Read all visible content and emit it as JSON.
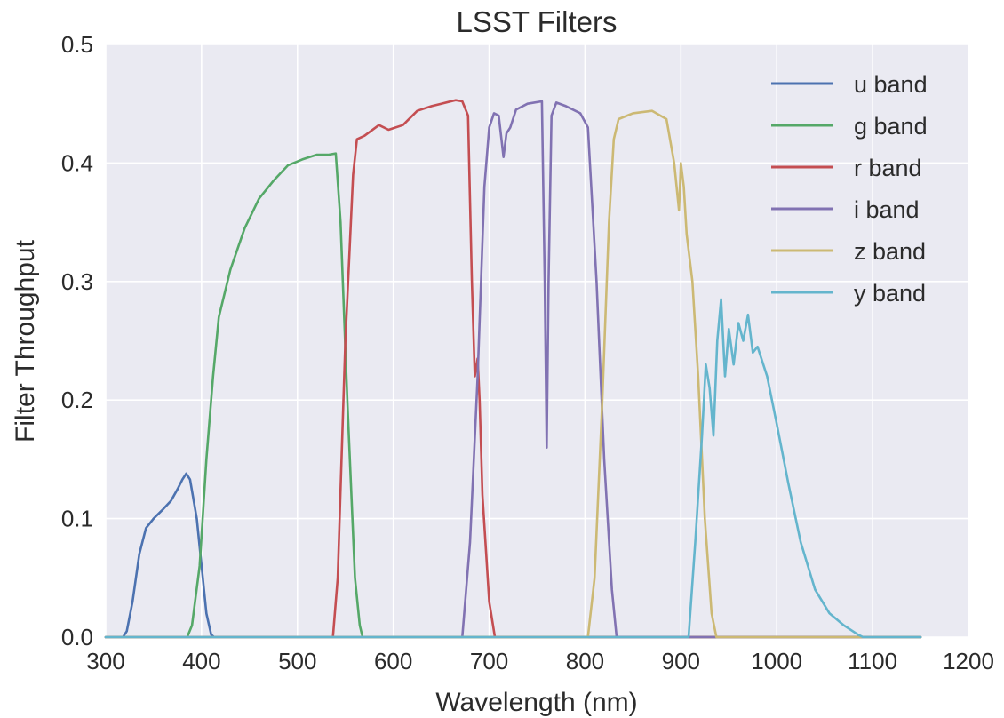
{
  "chart_data": {
    "type": "line",
    "title": "LSST Filters",
    "xlabel": "Wavelength (nm)",
    "ylabel": "Filter Throughput",
    "xlim": [
      300,
      1200
    ],
    "ylim": [
      0,
      0.5
    ],
    "xticks": [
      "300",
      "400",
      "500",
      "600",
      "700",
      "800",
      "900",
      "1000",
      "1100",
      "1200"
    ],
    "yticks": [
      "0.0",
      "0.1",
      "0.2",
      "0.3",
      "0.4",
      "0.5"
    ],
    "grid": true,
    "background": "#eaeaf2",
    "legend_position": "top-right",
    "series": [
      {
        "name": "u band",
        "color": "#4c72b0",
        "x": [
          300,
          318,
          322,
          328,
          335,
          342,
          350,
          360,
          368,
          375,
          380,
          384,
          388,
          395,
          400,
          405,
          410,
          413,
          1150
        ],
        "y": [
          0,
          0,
          0.005,
          0.03,
          0.07,
          0.092,
          0.1,
          0.108,
          0.115,
          0.125,
          0.133,
          0.138,
          0.133,
          0.1,
          0.06,
          0.02,
          0.002,
          0,
          0
        ]
      },
      {
        "name": "g band",
        "color": "#55a868",
        "x": [
          300,
          385,
          390,
          398,
          405,
          412,
          418,
          430,
          445,
          460,
          475,
          490,
          505,
          520,
          532,
          540,
          545,
          552,
          560,
          565,
          568,
          1150
        ],
        "y": [
          0,
          0,
          0.01,
          0.06,
          0.15,
          0.22,
          0.27,
          0.31,
          0.345,
          0.37,
          0.385,
          0.398,
          0.403,
          0.407,
          0.407,
          0.408,
          0.35,
          0.2,
          0.05,
          0.01,
          0,
          0
        ]
      },
      {
        "name": "r band",
        "color": "#c44e52",
        "x": [
          300,
          537,
          542,
          550,
          558,
          562,
          570,
          585,
          595,
          610,
          625,
          640,
          650,
          665,
          672,
          678,
          682,
          685,
          688,
          690,
          693,
          700,
          706,
          1150
        ],
        "y": [
          0,
          0,
          0.05,
          0.25,
          0.39,
          0.42,
          0.423,
          0.432,
          0.428,
          0.432,
          0.444,
          0.448,
          0.45,
          0.453,
          0.452,
          0.44,
          0.3,
          0.22,
          0.235,
          0.2,
          0.12,
          0.03,
          0,
          0
        ]
      },
      {
        "name": "i band",
        "color": "#8172b2",
        "x": [
          300,
          672,
          680,
          688,
          695,
          700,
          705,
          710,
          715,
          718,
          722,
          728,
          740,
          755,
          758,
          760,
          762,
          765,
          770,
          780,
          795,
          803,
          812,
          820,
          828,
          833,
          1150
        ],
        "y": [
          0,
          0,
          0.08,
          0.22,
          0.38,
          0.43,
          0.442,
          0.44,
          0.405,
          0.425,
          0.43,
          0.445,
          0.45,
          0.452,
          0.3,
          0.16,
          0.3,
          0.44,
          0.451,
          0.448,
          0.442,
          0.43,
          0.3,
          0.15,
          0.04,
          0,
          0
        ]
      },
      {
        "name": "z band",
        "color": "#ccb974",
        "x": [
          300,
          803,
          810,
          818,
          825,
          830,
          835,
          850,
          870,
          885,
          893,
          898,
          900,
          903,
          906,
          912,
          918,
          925,
          932,
          937,
          1150
        ],
        "y": [
          0,
          0,
          0.05,
          0.2,
          0.35,
          0.42,
          0.437,
          0.442,
          0.444,
          0.437,
          0.4,
          0.36,
          0.4,
          0.38,
          0.34,
          0.3,
          0.22,
          0.1,
          0.02,
          0,
          0
        ]
      },
      {
        "name": "y band",
        "color": "#64b5cd",
        "x": [
          300,
          908,
          915,
          922,
          926,
          930,
          934,
          938,
          942,
          946,
          950,
          955,
          960,
          965,
          970,
          975,
          980,
          990,
          1000,
          1012,
          1025,
          1040,
          1055,
          1070,
          1085,
          1090,
          1150
        ],
        "y": [
          0,
          0,
          0.08,
          0.17,
          0.23,
          0.21,
          0.17,
          0.25,
          0.285,
          0.22,
          0.26,
          0.23,
          0.265,
          0.25,
          0.272,
          0.24,
          0.245,
          0.22,
          0.18,
          0.13,
          0.08,
          0.04,
          0.02,
          0.01,
          0.002,
          0,
          0
        ]
      }
    ]
  }
}
